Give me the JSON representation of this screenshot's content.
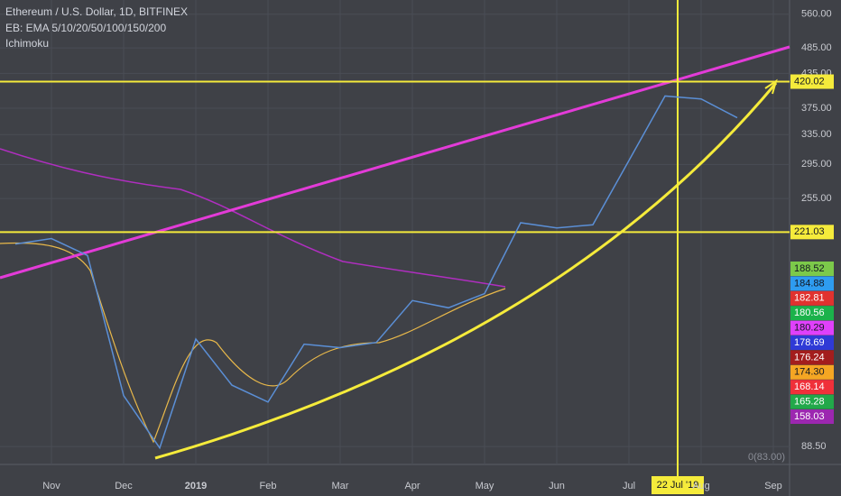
{
  "chart_data": {
    "type": "line",
    "title": "Ethereum / U.S. Dollar, 1D, BITFINEX",
    "indicators": [
      "EB: EMA 5/10/20/50/100/150/200",
      "Ichimoku"
    ],
    "categories": [
      null,
      "Nov",
      null,
      "Dec",
      null,
      "2019",
      null,
      "Feb",
      null,
      "Mar",
      null,
      "Apr",
      null,
      "May",
      null,
      "Jun",
      null,
      "Jul",
      null,
      "Aug",
      null,
      "Sep"
    ],
    "values": [
      210,
      215,
      200,
      110,
      88,
      140,
      115,
      107,
      137,
      135,
      138,
      165,
      160,
      170,
      230,
      225,
      228,
      300,
      395,
      390,
      360,
      null
    ],
    "color": "#5b8fd6",
    "log_scale": true,
    "ylim": [
      82,
      595
    ],
    "yticks": [
      {
        "value": 560,
        "label": "560.00"
      },
      {
        "value": 485,
        "label": "485.00"
      },
      {
        "value": 435,
        "label": "435.00"
      },
      {
        "value": 375,
        "label": "375.00"
      },
      {
        "value": 335,
        "label": "335.00"
      },
      {
        "value": 295,
        "label": "295.00"
      },
      {
        "value": 255,
        "label": "255.00"
      },
      {
        "value": 88.5,
        "label": "88.50"
      }
    ],
    "grid": true,
    "price_lines": [
      {
        "value": 420.02,
        "color": "#f5eb3b"
      },
      {
        "value": 221.03,
        "color": "#f5eb3b"
      }
    ],
    "ema": {
      "values": [
        188.52,
        184.88,
        182.81,
        180.56,
        180.29,
        178.69,
        176.24,
        174.3,
        168.14,
        165.28,
        158.03
      ],
      "value_labels": [
        "188.52",
        "184.88",
        "182.81",
        "180.56",
        "180.29",
        "178.69",
        "176.24",
        "174.30",
        "168.14",
        "165.28",
        "158.03"
      ],
      "colors": [
        "#7cc94a",
        "#2e9cf0",
        "#e0322f",
        "#1bb24b",
        "#e040fb",
        "#2f3ad6",
        "#a31d1d",
        "#f5a623",
        "#f0303a",
        "#22a84a",
        "#9c27b0"
      ]
    },
    "fib_label": "0(83.00)",
    "crosshair_label": "22 Jul '19"
  }
}
